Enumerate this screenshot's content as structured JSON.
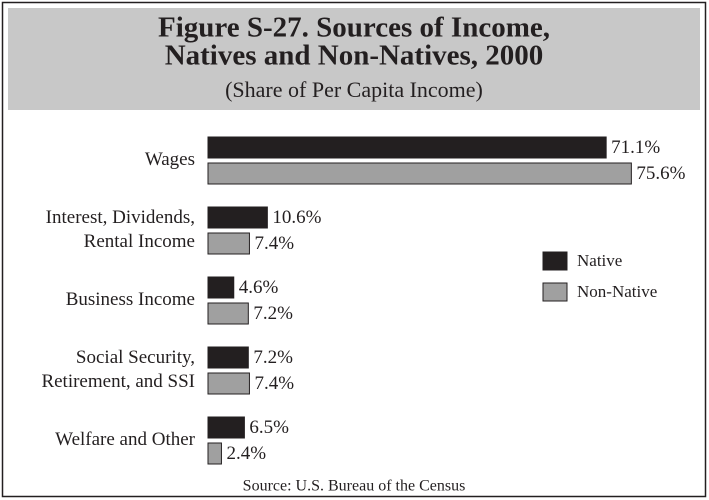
{
  "chart_data": {
    "type": "hbar",
    "title": [
      "Figure S-27. Sources of Income,",
      "Natives and Non-Natives, 2000"
    ],
    "subtitle": "(Share of Per Capita Income)",
    "source": "Source: U.S. Bureau of the Census",
    "categories": [
      [
        "Wages"
      ],
      [
        "Interest, Dividends,",
        "Rental Income"
      ],
      [
        "Business Income"
      ],
      [
        "Social Security,",
        "Retirement, and SSI"
      ],
      [
        "Welfare and Other"
      ]
    ],
    "series": [
      {
        "name": "Native",
        "color": "#231f20",
        "values": [
          71.1,
          10.6,
          4.6,
          7.2,
          6.5
        ],
        "value_labels": [
          "71.1%",
          "10.6%",
          "4.6%",
          "7.2%",
          "6.5%"
        ]
      },
      {
        "name": "Non-Native",
        "color": "#a0a0a0",
        "values": [
          75.6,
          7.4,
          7.2,
          7.4,
          2.4
        ],
        "value_labels": [
          "75.6%",
          "7.4%",
          "7.2%",
          "7.4%",
          "2.4%"
        ]
      }
    ],
    "legend": "right"
  }
}
